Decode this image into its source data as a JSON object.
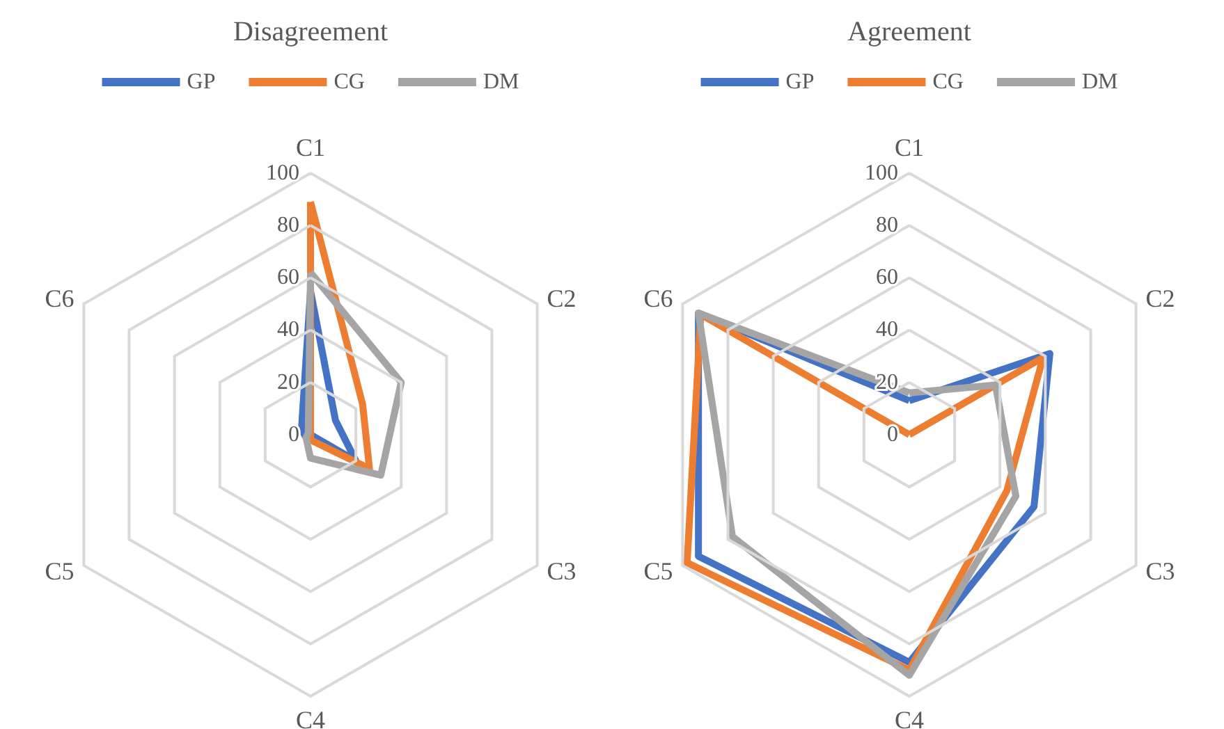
{
  "chart_data": [
    {
      "type": "radar",
      "title": "Disagreement",
      "categories": [
        "C1",
        "C2",
        "C3",
        "C4",
        "C5",
        "C6"
      ],
      "ylim": [
        0,
        100
      ],
      "yticks": [
        0,
        20,
        40,
        60,
        80,
        100
      ],
      "grid": true,
      "legend": "top",
      "marker": "none",
      "line_style": "solid",
      "series": [
        {
          "name": "GP",
          "color": "#4472c4",
          "values": [
            55,
            11,
            20,
            0,
            2,
            4
          ]
        },
        {
          "name": "CG",
          "color": "#ed7d31",
          "values": [
            89,
            23,
            26,
            2,
            0,
            0
          ]
        },
        {
          "name": "DM",
          "color": "#a5a5a5",
          "values": [
            62,
            40,
            31,
            9,
            2,
            1
          ]
        }
      ]
    },
    {
      "type": "radar",
      "title": "Agreement",
      "categories": [
        "C1",
        "C2",
        "C3",
        "C4",
        "C5",
        "C6"
      ],
      "ylim": [
        0,
        100
      ],
      "yticks": [
        0,
        20,
        40,
        60,
        80,
        100
      ],
      "grid": true,
      "legend": "top",
      "marker": "none",
      "line_style": "solid",
      "series": [
        {
          "name": "GP",
          "color": "#4472c4",
          "values": [
            13,
            62,
            55,
            87,
            93,
            93
          ]
        },
        {
          "name": "CG",
          "color": "#ed7d31",
          "values": [
            0,
            59,
            43,
            90,
            98,
            92
          ]
        },
        {
          "name": "DM",
          "color": "#a5a5a5",
          "values": [
            16,
            38,
            47,
            92,
            78,
            93
          ]
        }
      ]
    }
  ]
}
